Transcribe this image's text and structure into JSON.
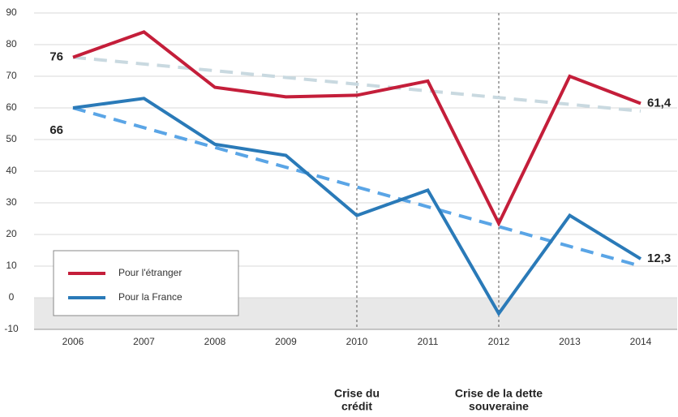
{
  "chart_data": {
    "type": "line",
    "categories": [
      "2006",
      "2007",
      "2008",
      "2009",
      "2010",
      "2011",
      "2012",
      "2013",
      "2014"
    ],
    "series": [
      {
        "name": "Pour l'étranger",
        "color": "#c41e3a",
        "values": [
          76,
          84,
          66.5,
          63.5,
          64,
          68.5,
          23.5,
          70,
          61.4
        ]
      },
      {
        "name": "Pour la France",
        "color": "#2a7ab8",
        "values": [
          60,
          63,
          48.5,
          45,
          26,
          34,
          -5,
          26,
          12.3
        ]
      }
    ],
    "trends": [
      {
        "color": "#c9d9e0",
        "values": [
          76,
          59
        ]
      },
      {
        "color": "#5aa5e6",
        "values": [
          60,
          10
        ]
      }
    ],
    "annotations": [
      "76",
      "66",
      "61,4",
      "12,3"
    ],
    "events": [
      {
        "x": "2010",
        "label": [
          "Crise du",
          "crédit"
        ]
      },
      {
        "x": "2012",
        "label": [
          "Crise de la dette",
          "souveraine"
        ]
      }
    ],
    "ylim": [
      -10,
      90
    ],
    "yticks": [
      -10,
      0,
      10,
      20,
      30,
      40,
      50,
      60,
      70,
      80,
      90
    ],
    "grid": true,
    "legend": "lower-left"
  }
}
